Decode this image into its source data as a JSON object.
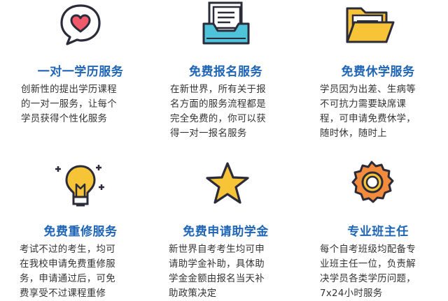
{
  "services": [
    {
      "icon": "heart-chat-icon",
      "title": "一对一学历服务",
      "desc": "创新性的提出学历课程\n的一对一服务，让每个\n学员获得个性化服务"
    },
    {
      "icon": "inbox-documents-icon",
      "title": "免费报名服务",
      "desc": "在新世界，所有关于报\n名方面的服务流程都是\n完全免费的，你可以获\n得一对一报名服务"
    },
    {
      "icon": "folder-icon",
      "title": "免费休学服务",
      "desc": "学员因为出差、生病等\n不可抗力需要缺席课\n程，可申请免费休学，\n随时休，随时上"
    },
    {
      "icon": "lightbulb-icon",
      "title": "免费重修服务",
      "desc": "考试不过的考生，均可\n在我校申请免费重修服\n务，申请通过后，可免\n费享受不过课程重修"
    },
    {
      "icon": "star-icon",
      "title": "免费申请助学金",
      "desc": "新世界自考考生均可申\n请助学金补助，具体助\n学金金额由报名当天补\n助政策决定"
    },
    {
      "icon": "medal-icon",
      "title": "专业班主任",
      "desc": "每个自考班级均配备专\n业班主任一位，负责解\n决学员各类学历问题，\n7x24小时服务"
    }
  ],
  "colors": {
    "title": "#1f65b6",
    "outline": "#2b2b3a",
    "heart": "#f0596a",
    "yellow": "#f7c437",
    "tray": "#4fc3d9",
    "orange": "#f28b3b"
  }
}
